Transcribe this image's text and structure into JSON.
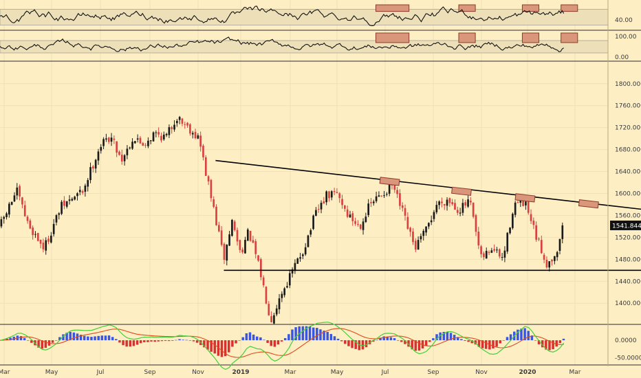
{
  "colors": {
    "background": "#fdeec4",
    "grid": "#efe2b6",
    "panel_line": "#2b2b2b",
    "band_fill": "#ede0b8",
    "highlight_fill": "#d9967a",
    "highlight_stroke": "#8a3a2a",
    "candle_up": "#1a1a1a",
    "candle_down": "#d94040",
    "trendline": "#000000",
    "price_label_bg": "#111111",
    "macd_line": "#44d03a",
    "signal_line": "#e24a1a",
    "hist_pos": "#3a55e0",
    "hist_neg": "#d93030"
  },
  "x_axis": {
    "labels": [
      "Mar",
      "May",
      "Jul",
      "Sep",
      "Nov",
      "2019",
      "Mar",
      "May",
      "Jul",
      "Sep",
      "Nov",
      "2020",
      "Mar"
    ]
  },
  "last_price_label": "1541.8442",
  "chart_data": [
    {
      "type": "candlestick",
      "y_ticks": [
        "1800.0000",
        "1760.0000",
        "1720.0000",
        "1680.0000",
        "1640.0000",
        "1600.0000",
        "1560.0000",
        "1520.0000",
        "1480.0000",
        "1440.0000",
        "1400.0000"
      ],
      "ylim": [
        1364,
        1836
      ],
      "last_price": 1541.8442,
      "price_path": [
        [
          2018.12,
          1540
        ],
        [
          2018.18,
          1605
        ],
        [
          2018.22,
          1545
        ],
        [
          2018.28,
          1500
        ],
        [
          2018.34,
          1575
        ],
        [
          2018.42,
          1605
        ],
        [
          2018.48,
          1685
        ],
        [
          2018.52,
          1705
        ],
        [
          2018.56,
          1662
        ],
        [
          2018.6,
          1700
        ],
        [
          2018.64,
          1690
        ],
        [
          2018.68,
          1710
        ],
        [
          2018.72,
          1702
        ],
        [
          2018.76,
          1740
        ],
        [
          2018.8,
          1722
        ],
        [
          2018.84,
          1700
        ],
        [
          2018.87,
          1625
        ],
        [
          2018.9,
          1555
        ],
        [
          2018.93,
          1480
        ],
        [
          2018.96,
          1550
        ],
        [
          2018.99,
          1492
        ],
        [
          2019.02,
          1530
        ],
        [
          2019.06,
          1460
        ],
        [
          2019.1,
          1370
        ],
        [
          2019.14,
          1420
        ],
        [
          2019.18,
          1460
        ],
        [
          2019.22,
          1500
        ],
        [
          2019.26,
          1560
        ],
        [
          2019.3,
          1595
        ],
        [
          2019.34,
          1600
        ],
        [
          2019.38,
          1560
        ],
        [
          2019.42,
          1540
        ],
        [
          2019.46,
          1580
        ],
        [
          2019.5,
          1598
        ],
        [
          2019.54,
          1615
        ],
        [
          2019.58,
          1560
        ],
        [
          2019.62,
          1500
        ],
        [
          2019.66,
          1530
        ],
        [
          2019.7,
          1580
        ],
        [
          2019.74,
          1590
        ],
        [
          2019.78,
          1570
        ],
        [
          2019.82,
          1585
        ],
        [
          2019.86,
          1480
        ],
        [
          2019.9,
          1500
        ],
        [
          2019.94,
          1480
        ],
        [
          2019.98,
          1582
        ],
        [
          2020.02,
          1580
        ],
        [
          2020.06,
          1520
        ],
        [
          2020.1,
          1470
        ],
        [
          2020.14,
          1500
        ],
        [
          2020.16,
          1541.8442
        ]
      ],
      "trendlines": [
        {
          "points": [
            [
              2018.9,
              1660
            ],
            [
              2020.55,
              1565
            ]
          ]
        },
        {
          "points": [
            [
              2018.93,
              1460
            ],
            [
              2020.55,
              1460
            ]
          ]
        }
      ],
      "highlight_boxes": [
        {
          "x_center": 2019.53,
          "y_center": 1622
        },
        {
          "x_center": 2019.79,
          "y_center": 1604
        },
        {
          "x_center": 2020.02,
          "y_center": 1592
        },
        {
          "x_center": 2020.25,
          "y_center": 1581
        }
      ]
    },
    {
      "type": "line",
      "y_ticks": [
        "40.00"
      ],
      "ylim": [
        0,
        100
      ],
      "band": [
        20,
        80
      ],
      "highlight_x_ranges": [
        [
          2019.48,
          2019.6
        ],
        [
          2019.78,
          2019.84
        ],
        [
          2020.01,
          2020.07
        ],
        [
          2020.15,
          2020.21
        ]
      ]
    },
    {
      "type": "line",
      "y_ticks": [
        "100.00",
        "0.00"
      ],
      "ylim": [
        -20,
        120
      ],
      "band": [
        20,
        80
      ],
      "highlight_x_ranges": [
        [
          2019.48,
          2019.6
        ],
        [
          2019.78,
          2019.84
        ],
        [
          2020.01,
          2020.07
        ],
        [
          2020.15,
          2020.21
        ]
      ]
    },
    {
      "type": "histogram",
      "y_ticks": [
        "0.0000",
        "-50.0000"
      ],
      "ylim": [
        -70,
        45
      ],
      "series": [
        {
          "name": "",
          "kind": "line"
        },
        {
          "name": "",
          "kind": "signal"
        },
        {
          "name": "",
          "kind": "histogram"
        }
      ]
    }
  ]
}
